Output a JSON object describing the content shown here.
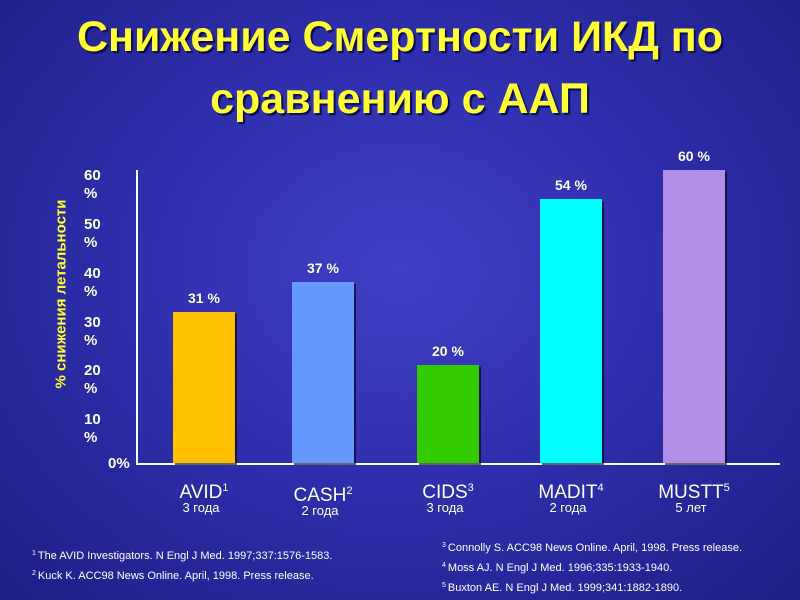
{
  "title": "Снижение Смертности ИКД по сравнению с ААП",
  "colors": {
    "background": "#2f2fae",
    "title": "#ffff33",
    "axis": "#ffffff",
    "bars": [
      "#ffc000",
      "#6699ff",
      "#33cc00",
      "#00ffff",
      "#b38ee8"
    ]
  },
  "chart_data": {
    "type": "bar",
    "ylabel": "% снижения летальности",
    "ylim": [
      0,
      60
    ],
    "y_ticks": [
      "0%",
      "10 %",
      "20 %",
      "30 %",
      "40 %",
      "50 %",
      "60 %"
    ],
    "categories": [
      "AVID",
      "CASH",
      "CIDS",
      "MADIT",
      "MUSTT"
    ],
    "category_superscripts": [
      "1",
      "2",
      "3",
      "4",
      "5"
    ],
    "category_sublabels": [
      "3 года",
      "2 года",
      "3 года",
      "2 года",
      "5 лет"
    ],
    "values": [
      31,
      37,
      20,
      54,
      60
    ],
    "value_labels": [
      "31 %",
      "37 %",
      "20 %",
      "54 %",
      "60 %"
    ],
    "grid": false
  },
  "references": [
    {
      "num": "1",
      "text": "The AVID Investigators. N Engl J Med. 1997;337:1576-1583."
    },
    {
      "num": "2",
      "text": "Kuck K. ACC98 News Online. April, 1998. Press release."
    },
    {
      "num": "3",
      "text": "Connolly S. ACC98 News Online. April, 1998. Press release."
    },
    {
      "num": "4",
      "text": "Moss AJ. N Engl J Med. 1996;335:1933-1940."
    },
    {
      "num": "5",
      "text": "Buxton AE. N Engl J Med. 1999;341:1882-1890."
    }
  ]
}
